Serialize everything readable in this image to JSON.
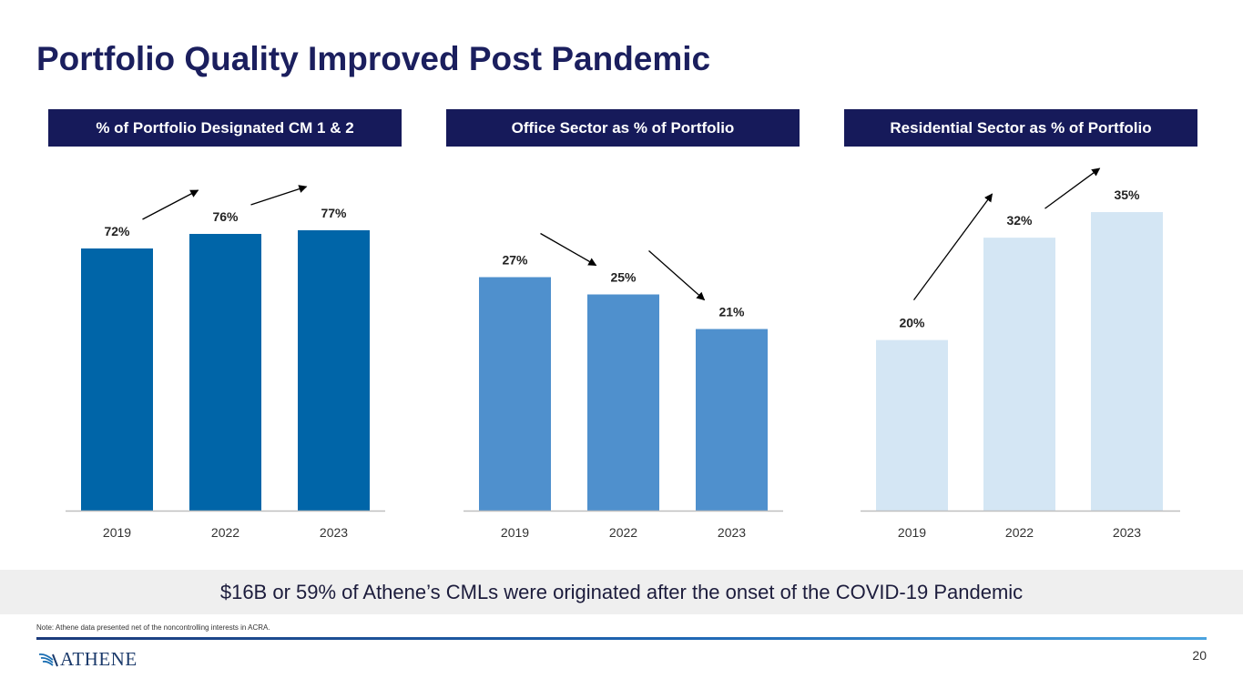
{
  "slide": {
    "title": "Portfolio Quality Improved Post Pandemic",
    "banner": "$16B or 59% of Athene’s CMLs were originated after the onset of the COVID-19 Pandemic",
    "note": "Note: Athene data presented net of the noncontrolling interests in ACRA.",
    "logo_text": "ATHENE",
    "page_number": "20"
  },
  "colors": {
    "navy": "#161a5a",
    "dark_blue": "#0065a8",
    "mid_blue": "#4f90cd",
    "light_blue": "#d4e6f4"
  },
  "chart_data": [
    {
      "type": "bar",
      "title": "% of Portfolio Designated CM 1 & 2",
      "categories": [
        "2019",
        "2022",
        "2023"
      ],
      "values": [
        72,
        76,
        77
      ],
      "labels": [
        "72%",
        "76%",
        "77%"
      ],
      "color": "#0065a8",
      "ylim": [
        0,
        80
      ],
      "xlabel": "",
      "ylabel": ""
    },
    {
      "type": "bar",
      "title": "Office Sector as % of Portfolio",
      "categories": [
        "2019",
        "2022",
        "2023"
      ],
      "values": [
        27,
        25,
        21
      ],
      "labels": [
        "27%",
        "25%",
        "21%"
      ],
      "color": "#4f90cd",
      "ylim": [
        0,
        45
      ],
      "xlabel": "",
      "ylabel": ""
    },
    {
      "type": "bar",
      "title": "Residential Sector as % of Portfolio",
      "categories": [
        "2019",
        "2022",
        "2023"
      ],
      "values": [
        20,
        32,
        35
      ],
      "labels": [
        "20%",
        "32%",
        "35%"
      ],
      "color": "#d4e6f4",
      "ylim": [
        0,
        40
      ],
      "xlabel": "",
      "ylabel": ""
    }
  ]
}
